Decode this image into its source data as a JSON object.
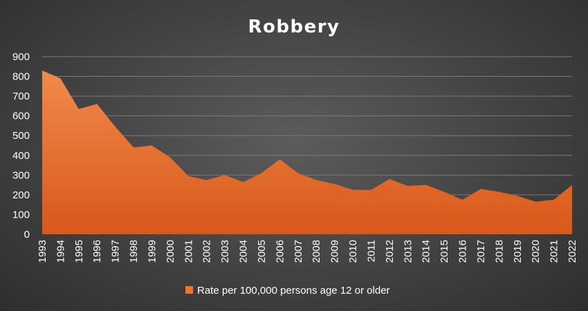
{
  "chart_data": {
    "type": "area",
    "title": "Robbery",
    "categories": [
      "1993",
      "1994",
      "1995",
      "1996",
      "1997",
      "1998",
      "1999",
      "2000",
      "2001",
      "2002",
      "2003",
      "2004",
      "2005",
      "2006",
      "2007",
      "2008",
      "2009",
      "2010",
      "2011",
      "2012",
      "2013",
      "2014",
      "2015",
      "2016",
      "2017",
      "2018",
      "2019",
      "2020",
      "2021",
      "2022"
    ],
    "series": [
      {
        "name": "Rate per 100,000 persons age 12 or older",
        "values": [
          830,
          790,
          635,
          660,
          545,
          440,
          450,
          390,
          295,
          275,
          300,
          265,
          310,
          380,
          310,
          275,
          255,
          225,
          225,
          280,
          245,
          250,
          215,
          175,
          230,
          215,
          195,
          165,
          175,
          250
        ]
      }
    ],
    "yticks": [
      "0",
      "100",
      "200",
      "300",
      "400",
      "500",
      "600",
      "700",
      "800",
      "900"
    ],
    "ylim": [
      0,
      900
    ],
    "grid": true,
    "legend_position": "bottom",
    "colors": {
      "fill_top": "#f08a4b",
      "fill_bottom": "#d8581a",
      "legend_swatch": "#ee7530"
    }
  }
}
